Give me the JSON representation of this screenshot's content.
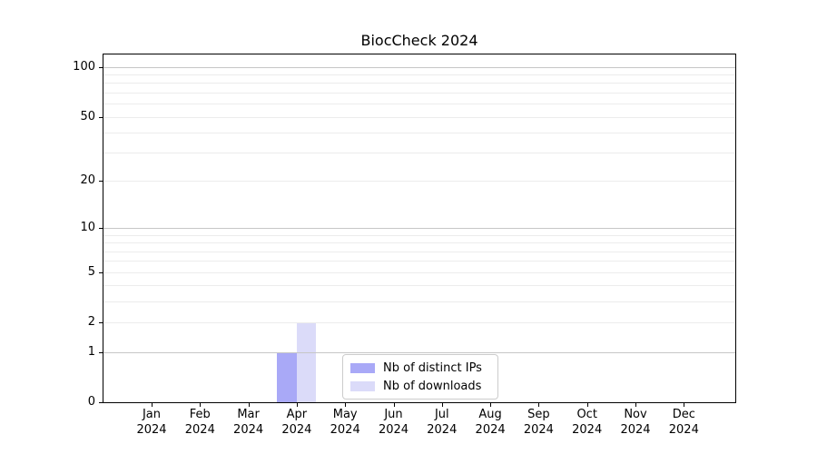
{
  "chart_data": {
    "type": "bar",
    "title": "BiocCheck 2024",
    "categories": [
      "Jan 2024",
      "Feb 2024",
      "Mar 2024",
      "Apr 2024",
      "May 2024",
      "Jun 2024",
      "Jul 2024",
      "Aug 2024",
      "Sep 2024",
      "Oct 2024",
      "Nov 2024",
      "Dec 2024"
    ],
    "series": [
      {
        "name": "Nb of distinct IPs",
        "color": "#a9a9f7",
        "values": [
          0,
          0,
          0,
          1,
          0,
          0,
          0,
          0,
          0,
          0,
          0,
          0
        ]
      },
      {
        "name": "Nb of downloads",
        "color": "#dbdbf9",
        "values": [
          0,
          0,
          0,
          2,
          0,
          0,
          0,
          0,
          0,
          0,
          0,
          0
        ]
      }
    ],
    "y_axis": {
      "scale": "log1p",
      "ticks": [
        0,
        1,
        2,
        5,
        10,
        20,
        50,
        100
      ],
      "major_gridlines": [
        1,
        10,
        100
      ],
      "minor_gridlines": [
        2,
        3,
        4,
        5,
        6,
        7,
        8,
        9,
        20,
        30,
        40,
        50,
        60,
        70,
        80,
        90
      ],
      "range": [
        0,
        119
      ]
    },
    "xlabel": "",
    "ylabel": "",
    "grid": true,
    "legend_position": "inside-bottom-center"
  },
  "colors": {
    "background": "#ffffff",
    "axis": "#000000",
    "grid_major": "#c6c6c6",
    "grid_minor": "#ececec",
    "legend_border": "#cccccc"
  }
}
